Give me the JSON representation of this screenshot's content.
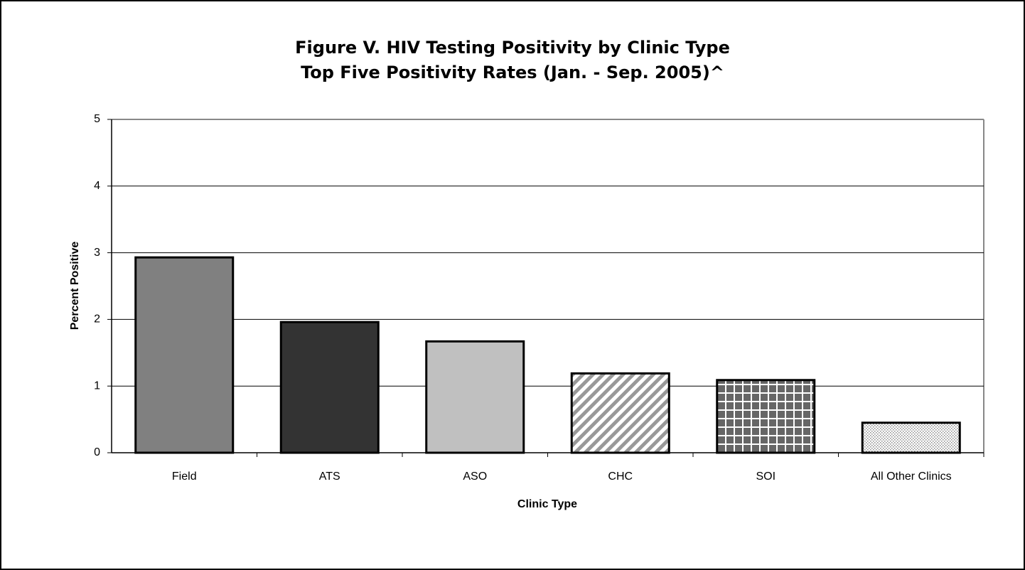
{
  "chart_data": {
    "type": "bar",
    "title": "Figure V. HIV Testing Positivity by Clinic Type",
    "subtitle": "Top Five Positivity Rates (Jan. - Sep. 2005)^",
    "x_label": "Clinic Type",
    "y_label": "Percent Positive",
    "categories": [
      "Field",
      "ATS",
      "ASO",
      "CHC",
      "SOI",
      "All Other Clinics"
    ],
    "values": [
      2.93,
      1.96,
      1.67,
      1.19,
      1.09,
      0.45
    ],
    "colors": [
      "#808080",
      "#333333",
      "#c0c0c0",
      "#999999",
      "#666666",
      "#cccccc"
    ],
    "patterns": [
      "solid",
      "solid",
      "solid",
      "diagonal",
      "grid",
      "dots"
    ],
    "ylim": [
      0,
      5
    ],
    "yticks": [
      0,
      1,
      2,
      3,
      4,
      5
    ],
    "grid": true
  }
}
